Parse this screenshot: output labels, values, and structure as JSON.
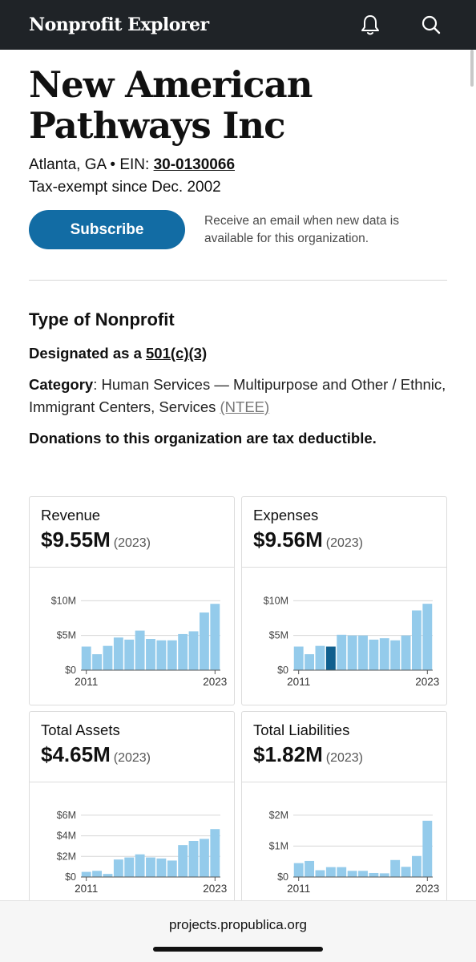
{
  "header": {
    "brand": "Nonprofit Explorer",
    "bell_icon": "bell-icon",
    "search_icon": "search-icon"
  },
  "org": {
    "name": "New American Pathways Inc",
    "location": "Atlanta, GA",
    "ein_label": "EIN:",
    "ein": "30-0130066",
    "tax_exempt": "Tax-exempt since Dec. 2002"
  },
  "subscribe": {
    "button_label": "Subscribe",
    "description": "Receive an email when new data is available for this organization."
  },
  "type_section": {
    "title": "Type of Nonprofit",
    "designated_prefix": "Designated as a",
    "designation": "501(c)(3)",
    "category_label": "Category",
    "category_value": "Human Services — Multipurpose and Other / Ethnic, Immigrant Centers, Services",
    "ntee": "(NTEE)",
    "deductible": "Donations to this organization are tax deductible."
  },
  "colors": {
    "bar": "#94cbeb",
    "bar_highlight": "#0f5f8e",
    "accent": "#126ca4",
    "topbar": "#1f2327"
  },
  "cards": [
    {
      "label": "Revenue",
      "value": "$9.55M",
      "year": "(2023)"
    },
    {
      "label": "Expenses",
      "value": "$9.56M",
      "year": "(2023)"
    },
    {
      "label": "Total Assets",
      "value": "$4.65M",
      "year": "(2023)"
    },
    {
      "label": "Total Liabilities",
      "value": "$1.82M",
      "year": "(2023)"
    }
  ],
  "chart_data": [
    {
      "type": "bar",
      "title": "Revenue",
      "x_start": "2011",
      "x_end": "2023",
      "ytick_labels": [
        "$10M",
        "$5M",
        "$0"
      ],
      "yticks": [
        10,
        5,
        0
      ],
      "ylim": [
        0,
        10.5
      ],
      "values": [
        3.4,
        2.3,
        3.5,
        4.7,
        4.4,
        5.7,
        4.5,
        4.3,
        4.3,
        5.2,
        5.6,
        8.3,
        9.55
      ]
    },
    {
      "type": "bar",
      "title": "Expenses",
      "x_start": "2011",
      "x_end": "2023",
      "ytick_labels": [
        "$10M",
        "$5M",
        "$0"
      ],
      "yticks": [
        10,
        5,
        0
      ],
      "ylim": [
        0,
        10.5
      ],
      "values": [
        3.4,
        2.3,
        3.5,
        3.4,
        5.1,
        5.0,
        5.0,
        4.4,
        4.6,
        4.3,
        5.0,
        8.6,
        9.56
      ],
      "highlight_index": 3
    },
    {
      "type": "bar",
      "title": "Total Assets",
      "x_start": "2011",
      "x_end": "2023",
      "ytick_labels": [
        "$6M",
        "$4M",
        "$2M",
        "$0"
      ],
      "yticks": [
        6,
        4,
        2,
        0
      ],
      "ylim": [
        0,
        6.3
      ],
      "values": [
        0.5,
        0.6,
        0.3,
        1.7,
        1.9,
        2.2,
        1.9,
        1.8,
        1.6,
        3.1,
        3.5,
        3.7,
        4.65
      ]
    },
    {
      "type": "bar",
      "title": "Total Liabilities",
      "x_start": "2011",
      "x_end": "2023",
      "ytick_labels": [
        "$2M",
        "$1M",
        "$0"
      ],
      "yticks": [
        2,
        1,
        0
      ],
      "ylim": [
        0,
        2.1
      ],
      "values": [
        0.45,
        0.52,
        0.22,
        0.32,
        0.32,
        0.2,
        0.2,
        0.13,
        0.12,
        0.55,
        0.33,
        0.68,
        1.82
      ]
    }
  ],
  "footer": {
    "url": "projects.propublica.org"
  }
}
